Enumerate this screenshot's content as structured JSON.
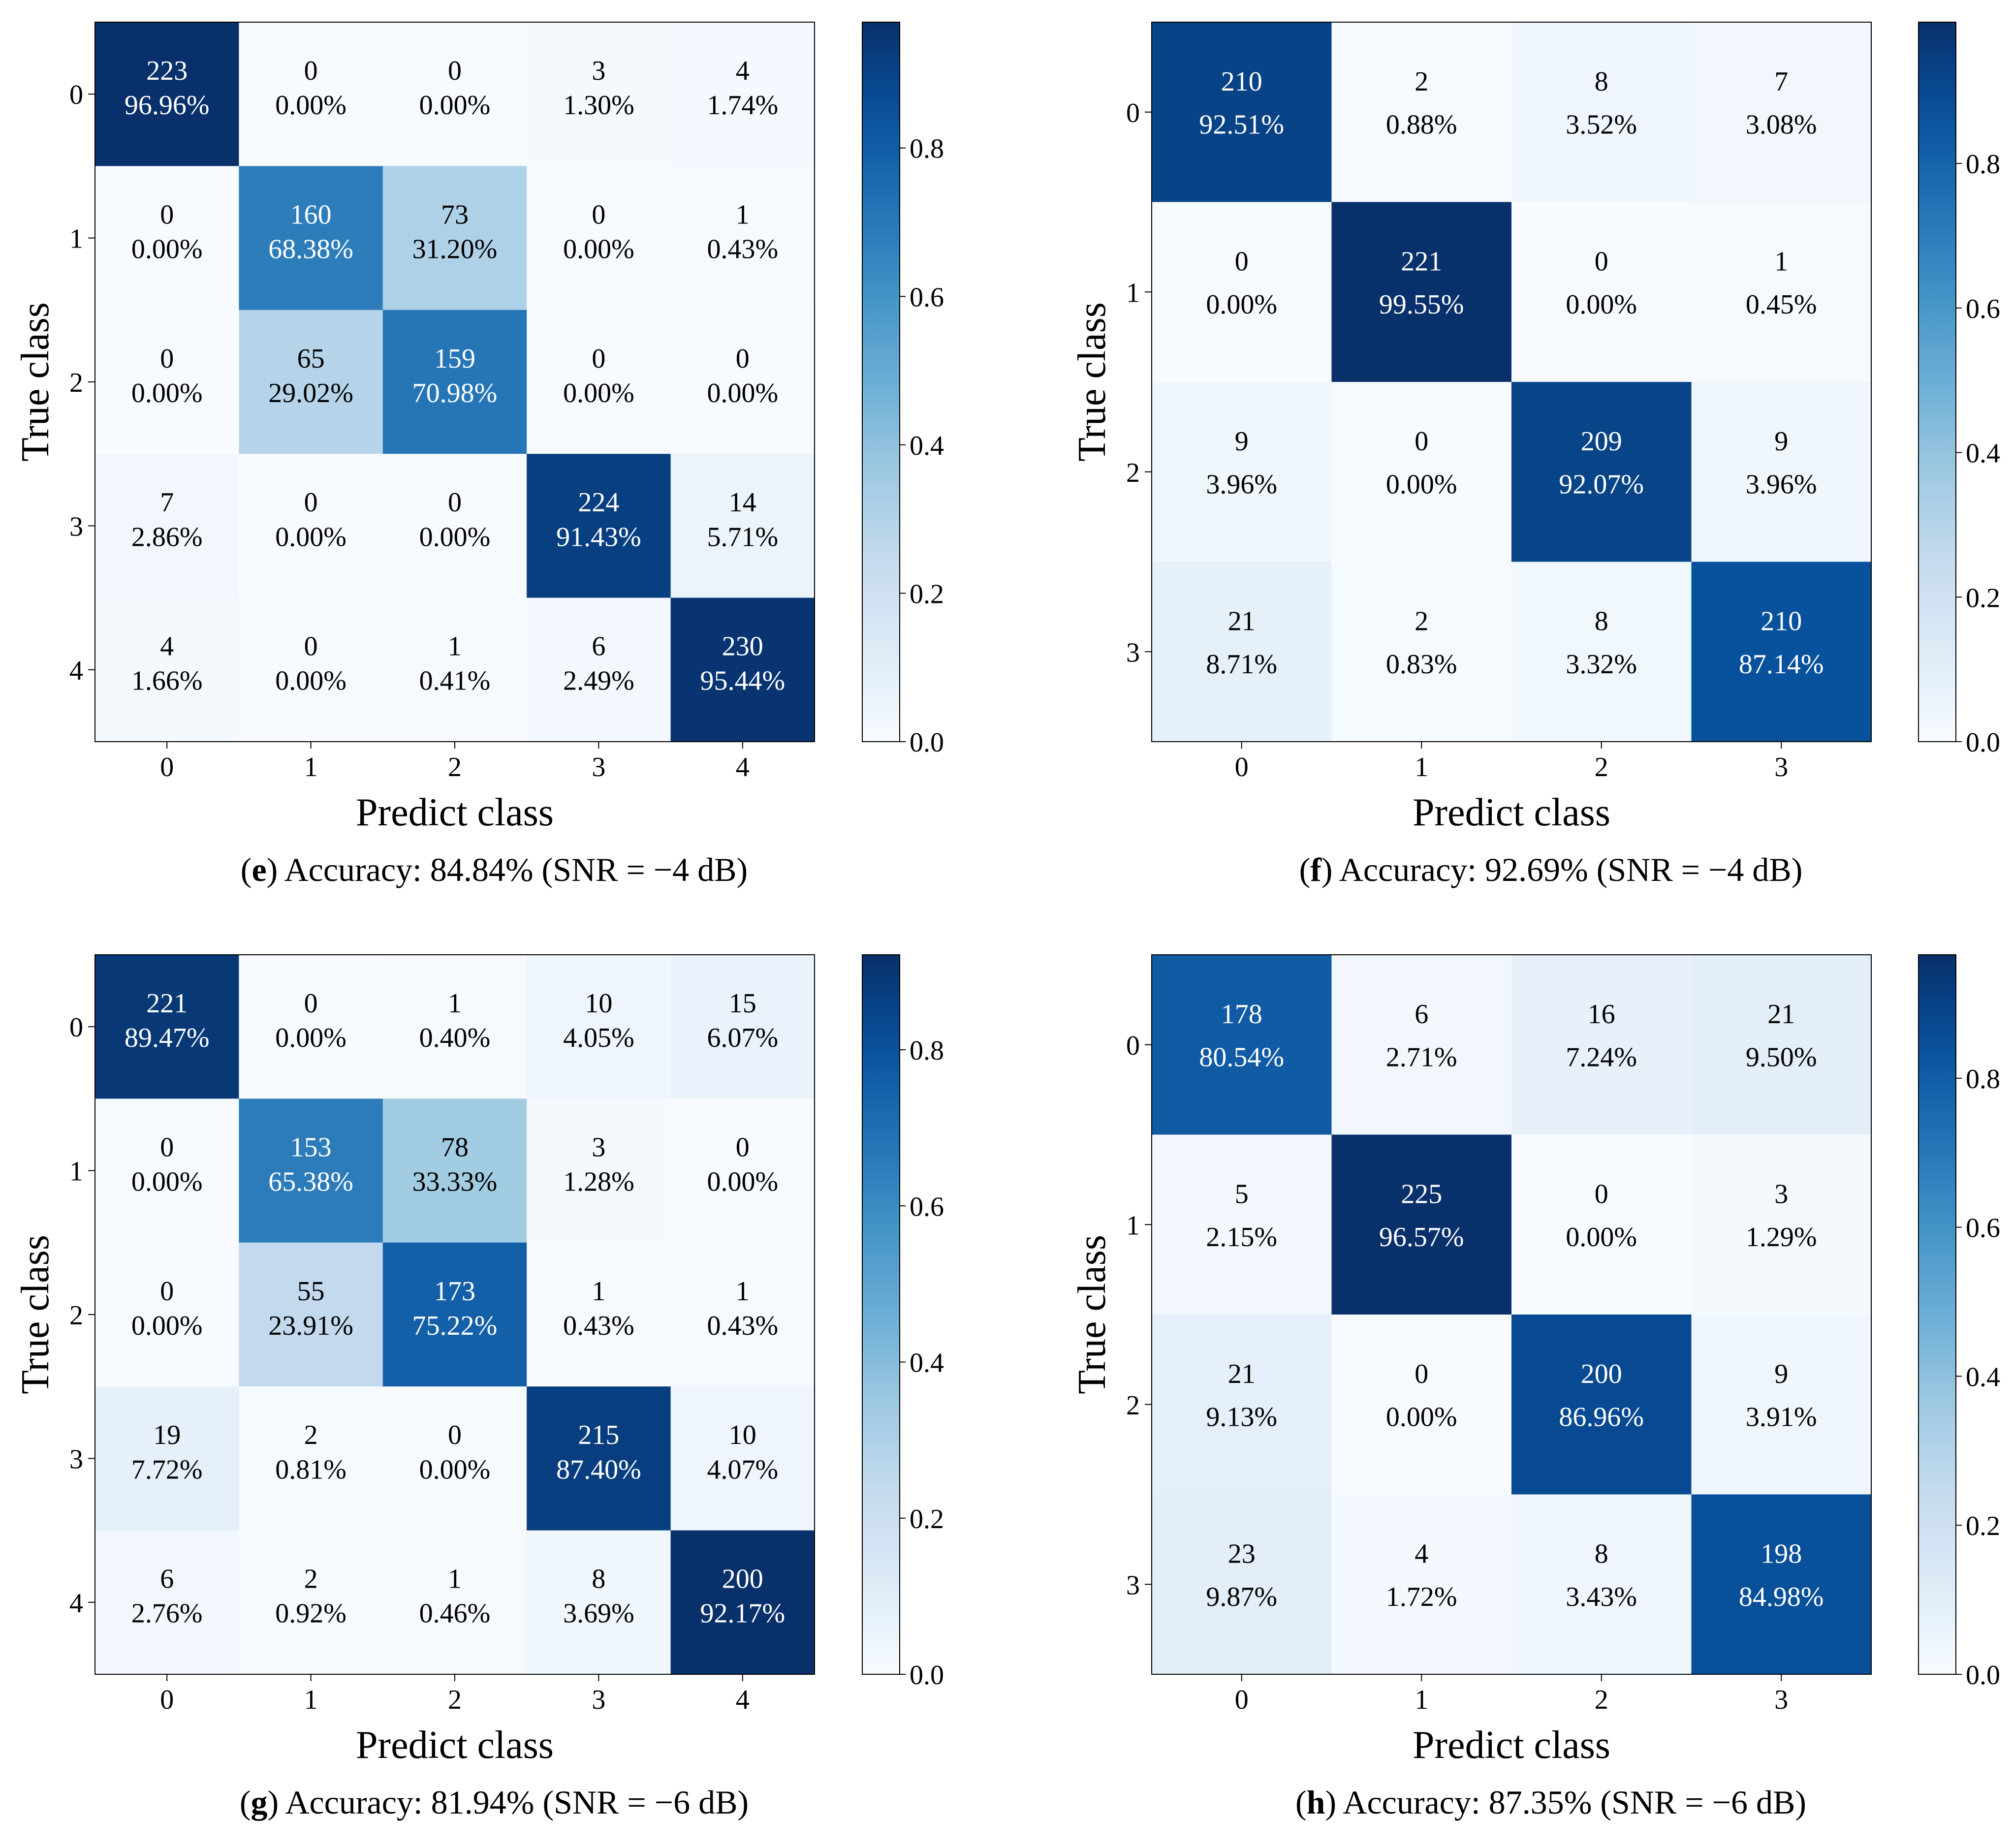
{
  "chart_data": [
    {
      "type": "heatmap",
      "panel": "e",
      "caption_letter": "e",
      "caption_text": ") Accuracy: 84.84% (SNR = −4 dB)",
      "xlabel": "Predict class",
      "ylabel": "True class",
      "classes": [
        "0",
        "1",
        "2",
        "3",
        "4"
      ],
      "counts": [
        [
          223,
          0,
          0,
          3,
          4
        ],
        [
          0,
          160,
          73,
          0,
          1
        ],
        [
          0,
          65,
          159,
          0,
          0
        ],
        [
          7,
          0,
          0,
          224,
          14
        ],
        [
          4,
          0,
          1,
          6,
          230
        ]
      ],
      "percents": [
        [
          "96.96%",
          "0.00%",
          "0.00%",
          "1.30%",
          "1.74%"
        ],
        [
          "0.00%",
          "68.38%",
          "31.20%",
          "0.00%",
          "0.43%"
        ],
        [
          "0.00%",
          "29.02%",
          "70.98%",
          "0.00%",
          "0.00%"
        ],
        [
          "2.86%",
          "0.00%",
          "0.00%",
          "91.43%",
          "5.71%"
        ],
        [
          "1.66%",
          "0.00%",
          "0.41%",
          "2.49%",
          "95.44%"
        ]
      ],
      "colorbar": {
        "min": 0,
        "max": 0.9696,
        "ticks": [
          "0.0",
          "0.2",
          "0.4",
          "0.6",
          "0.8"
        ]
      }
    },
    {
      "type": "heatmap",
      "panel": "f",
      "caption_letter": "f",
      "caption_text": ") Accuracy: 92.69% (SNR = −4 dB)",
      "xlabel": "Predict class",
      "ylabel": "True class",
      "classes": [
        "0",
        "1",
        "2",
        "3"
      ],
      "counts": [
        [
          210,
          2,
          8,
          7
        ],
        [
          0,
          221,
          0,
          1
        ],
        [
          9,
          0,
          209,
          9
        ],
        [
          21,
          2,
          8,
          210
        ]
      ],
      "percents": [
        [
          "92.51%",
          "0.88%",
          "3.52%",
          "3.08%"
        ],
        [
          "0.00%",
          "99.55%",
          "0.00%",
          "0.45%"
        ],
        [
          "3.96%",
          "0.00%",
          "92.07%",
          "3.96%"
        ],
        [
          "8.71%",
          "0.83%",
          "3.32%",
          "87.14%"
        ]
      ],
      "colorbar": {
        "min": 0,
        "max": 0.9955,
        "ticks": [
          "0.0",
          "0.2",
          "0.4",
          "0.6",
          "0.8"
        ]
      }
    },
    {
      "type": "heatmap",
      "panel": "g",
      "caption_letter": "g",
      "caption_text": ") Accuracy: 81.94% (SNR = −6 dB)",
      "xlabel": "Predict class",
      "ylabel": "True class",
      "classes": [
        "0",
        "1",
        "2",
        "3",
        "4"
      ],
      "counts": [
        [
          221,
          0,
          1,
          10,
          15
        ],
        [
          0,
          153,
          78,
          3,
          0
        ],
        [
          0,
          55,
          173,
          1,
          1
        ],
        [
          19,
          2,
          0,
          215,
          10
        ],
        [
          6,
          2,
          1,
          8,
          200
        ]
      ],
      "percents": [
        [
          "89.47%",
          "0.00%",
          "0.40%",
          "4.05%",
          "6.07%"
        ],
        [
          "0.00%",
          "65.38%",
          "33.33%",
          "1.28%",
          "0.00%"
        ],
        [
          "0.00%",
          "23.91%",
          "75.22%",
          "0.43%",
          "0.43%"
        ],
        [
          "7.72%",
          "0.81%",
          "0.00%",
          "87.40%",
          "4.07%"
        ],
        [
          "2.76%",
          "0.92%",
          "0.46%",
          "3.69%",
          "92.17%"
        ]
      ],
      "colorbar": {
        "min": 0,
        "max": 0.9217,
        "ticks": [
          "0.0",
          "0.2",
          "0.4",
          "0.6",
          "0.8"
        ]
      }
    },
    {
      "type": "heatmap",
      "panel": "h",
      "caption_letter": "h",
      "caption_text": ") Accuracy: 87.35% (SNR = −6 dB)",
      "xlabel": "Predict class",
      "ylabel": "True class",
      "classes": [
        "0",
        "1",
        "2",
        "3"
      ],
      "counts": [
        [
          178,
          6,
          16,
          21
        ],
        [
          5,
          225,
          0,
          3
        ],
        [
          21,
          0,
          200,
          9
        ],
        [
          23,
          4,
          8,
          198
        ]
      ],
      "percents": [
        [
          "80.54%",
          "2.71%",
          "7.24%",
          "9.50%"
        ],
        [
          "2.15%",
          "96.57%",
          "0.00%",
          "1.29%"
        ],
        [
          "9.13%",
          "0.00%",
          "86.96%",
          "3.91%"
        ],
        [
          "9.87%",
          "1.72%",
          "3.43%",
          "84.98%"
        ]
      ],
      "colorbar": {
        "min": 0,
        "max": 0.9657,
        "ticks": [
          "0.0",
          "0.2",
          "0.4",
          "0.6",
          "0.8"
        ]
      }
    }
  ]
}
